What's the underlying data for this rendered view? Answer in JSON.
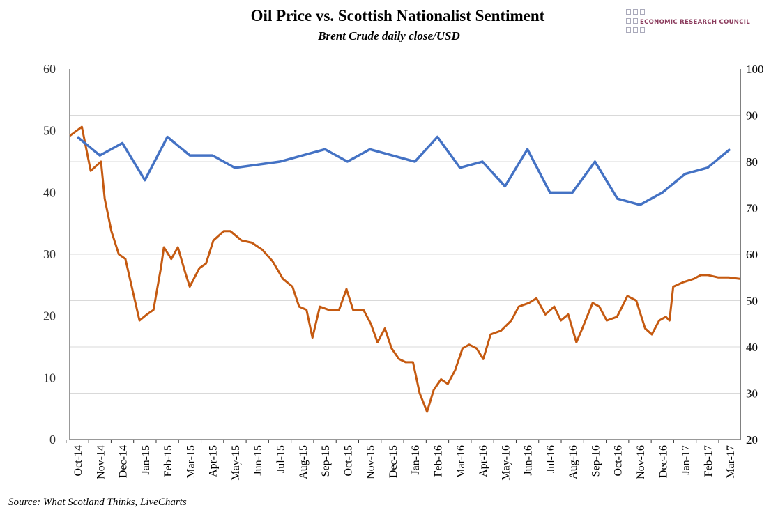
{
  "header": {
    "title": "Oil Price vs. Scottish Nationalist Sentiment",
    "subtitle": "Brent Crude daily close/USD",
    "logo_text": "ECONOMIC RESEARCH COUNCIL"
  },
  "source": "Source: What Scotland Thinks, LiveCharts",
  "chart_data": {
    "type": "line",
    "title": "Oil Price vs. Scottish Nationalist Sentiment",
    "subtitle": "Brent Crude daily close/USD",
    "categories": [
      "Oct-14",
      "Nov-14",
      "Dec-14",
      "Jan-15",
      "Feb-15",
      "Mar-15",
      "Apr-15",
      "May-15",
      "Jun-15",
      "Jul-15",
      "Aug-15",
      "Sep-15",
      "Oct-15",
      "Nov-15",
      "Dec-15",
      "Jan-16",
      "Feb-16",
      "Mar-16",
      "Apr-16",
      "May-16",
      "Jun-16",
      "Jul-16",
      "Aug-16",
      "Sep-16",
      "Oct-16",
      "Nov-16",
      "Dec-16",
      "Jan-17",
      "Feb-17",
      "Mar-17"
    ],
    "y_left": {
      "range": [
        0,
        60
      ],
      "ticks": [
        0,
        10,
        20,
        30,
        40,
        50,
        60
      ]
    },
    "y_right": {
      "range": [
        20,
        100
      ],
      "ticks": [
        20,
        30,
        40,
        50,
        60,
        70,
        80,
        90,
        100
      ]
    },
    "grid": true,
    "series": [
      {
        "axis": "left",
        "color": "#4472c4",
        "values": [
          49,
          46,
          48,
          42,
          49,
          46,
          46,
          44,
          44.5,
          45,
          46,
          47,
          45,
          47,
          46,
          45,
          49,
          44,
          45,
          41,
          47,
          40,
          40,
          45,
          39,
          38,
          40,
          43,
          44,
          47
        ]
      },
      {
        "axis": "right",
        "color": "#c55a11",
        "points": [
          [
            "2014-10-05",
            85.6
          ],
          [
            "2014-10-21",
            87.5
          ],
          [
            "2014-11-02",
            78
          ],
          [
            "2014-11-16",
            80
          ],
          [
            "2014-11-21",
            72
          ],
          [
            "2014-11-30",
            65
          ],
          [
            "2014-12-10",
            60
          ],
          [
            "2014-12-19",
            59
          ],
          [
            "2014-12-29",
            52
          ],
          [
            "2015-01-07",
            45.7
          ],
          [
            "2015-01-17",
            47
          ],
          [
            "2015-01-26",
            48
          ],
          [
            "2015-02-05",
            57
          ],
          [
            "2015-02-09",
            61.5
          ],
          [
            "2015-02-19",
            59
          ],
          [
            "2015-02-28",
            61.5
          ],
          [
            "2015-03-10",
            56
          ],
          [
            "2015-03-16",
            53
          ],
          [
            "2015-03-29",
            57
          ],
          [
            "2015-04-07",
            58
          ],
          [
            "2015-04-17",
            63
          ],
          [
            "2015-05-01",
            65
          ],
          [
            "2015-05-10",
            65
          ],
          [
            "2015-05-25",
            63
          ],
          [
            "2015-06-08",
            62.5
          ],
          [
            "2015-06-22",
            61
          ],
          [
            "2015-07-06",
            58.5
          ],
          [
            "2015-07-20",
            54.7
          ],
          [
            "2015-08-02",
            53
          ],
          [
            "2015-08-11",
            48.7
          ],
          [
            "2015-08-21",
            48
          ],
          [
            "2015-08-29",
            42
          ],
          [
            "2015-09-08",
            48.7
          ],
          [
            "2015-09-20",
            48
          ],
          [
            "2015-10-04",
            48
          ],
          [
            "2015-10-14",
            52.5
          ],
          [
            "2015-10-23",
            48
          ],
          [
            "2015-11-06",
            48
          ],
          [
            "2015-11-16",
            45
          ],
          [
            "2015-11-25",
            41
          ],
          [
            "2015-12-05",
            44
          ],
          [
            "2015-12-14",
            39.7
          ],
          [
            "2015-12-24",
            37.4
          ],
          [
            "2016-01-02",
            36.7
          ],
          [
            "2016-01-12",
            36.7
          ],
          [
            "2016-01-21",
            30
          ],
          [
            "2016-01-31",
            26
          ],
          [
            "2016-02-09",
            30.7
          ],
          [
            "2016-02-19",
            33
          ],
          [
            "2016-02-28",
            32
          ],
          [
            "2016-03-09",
            35
          ],
          [
            "2016-03-19",
            39.7
          ],
          [
            "2016-03-28",
            40.5
          ],
          [
            "2016-04-07",
            39.7
          ],
          [
            "2016-04-16",
            37.4
          ],
          [
            "2016-04-26",
            42.7
          ],
          [
            "2016-05-10",
            43.5
          ],
          [
            "2016-05-24",
            45.7
          ],
          [
            "2016-06-03",
            48.7
          ],
          [
            "2016-06-17",
            49.5
          ],
          [
            "2016-06-27",
            50.5
          ],
          [
            "2016-07-09",
            47
          ],
          [
            "2016-07-21",
            48.7
          ],
          [
            "2016-07-30",
            45.7
          ],
          [
            "2016-08-09",
            47
          ],
          [
            "2016-08-20",
            41
          ],
          [
            "2016-08-28",
            44
          ],
          [
            "2016-09-11",
            49.5
          ],
          [
            "2016-09-20",
            48.7
          ],
          [
            "2016-09-30",
            45.7
          ],
          [
            "2016-10-14",
            46.5
          ],
          [
            "2016-10-28",
            51
          ],
          [
            "2016-11-09",
            50
          ],
          [
            "2016-11-21",
            44
          ],
          [
            "2016-11-30",
            42.7
          ],
          [
            "2016-12-10",
            45.7
          ],
          [
            "2016-12-19",
            46.5
          ],
          [
            "2016-12-24",
            45.7
          ],
          [
            "2016-12-29",
            53
          ],
          [
            "2017-01-12",
            54
          ],
          [
            "2017-01-26",
            54.7
          ],
          [
            "2017-02-04",
            55.5
          ],
          [
            "2017-02-14",
            55.5
          ],
          [
            "2017-02-28",
            55
          ],
          [
            "2017-03-14",
            55
          ],
          [
            "2017-03-29",
            54.7
          ]
        ]
      }
    ]
  }
}
